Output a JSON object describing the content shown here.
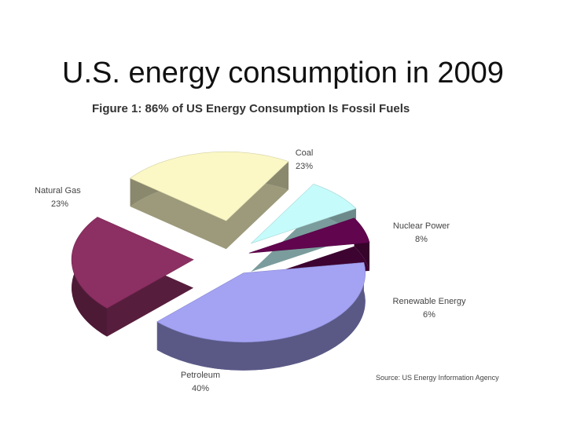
{
  "slide": {
    "title": "U.S. energy consumption in 2009"
  },
  "chart_data": {
    "type": "pie",
    "title": "Figure 1: 86% of US Energy Consumption Is Fossil Fuels",
    "source": "Source: US Energy Information Agency",
    "slices": [
      {
        "name": "Coal",
        "value": 23,
        "label": "23%",
        "color": "#fbf8c6"
      },
      {
        "name": "Nuclear Power",
        "value": 8,
        "label": "8%",
        "color": "#c6fbfb"
      },
      {
        "name": "Renewable Energy",
        "value": 6,
        "label": "6%",
        "color": "#62054f"
      },
      {
        "name": "Petroleum",
        "value": 40,
        "label": "40%",
        "color": "#a3a2f3"
      },
      {
        "name": "Natural Gas",
        "value": 23,
        "label": "23%",
        "color": "#8c2f63"
      }
    ]
  }
}
